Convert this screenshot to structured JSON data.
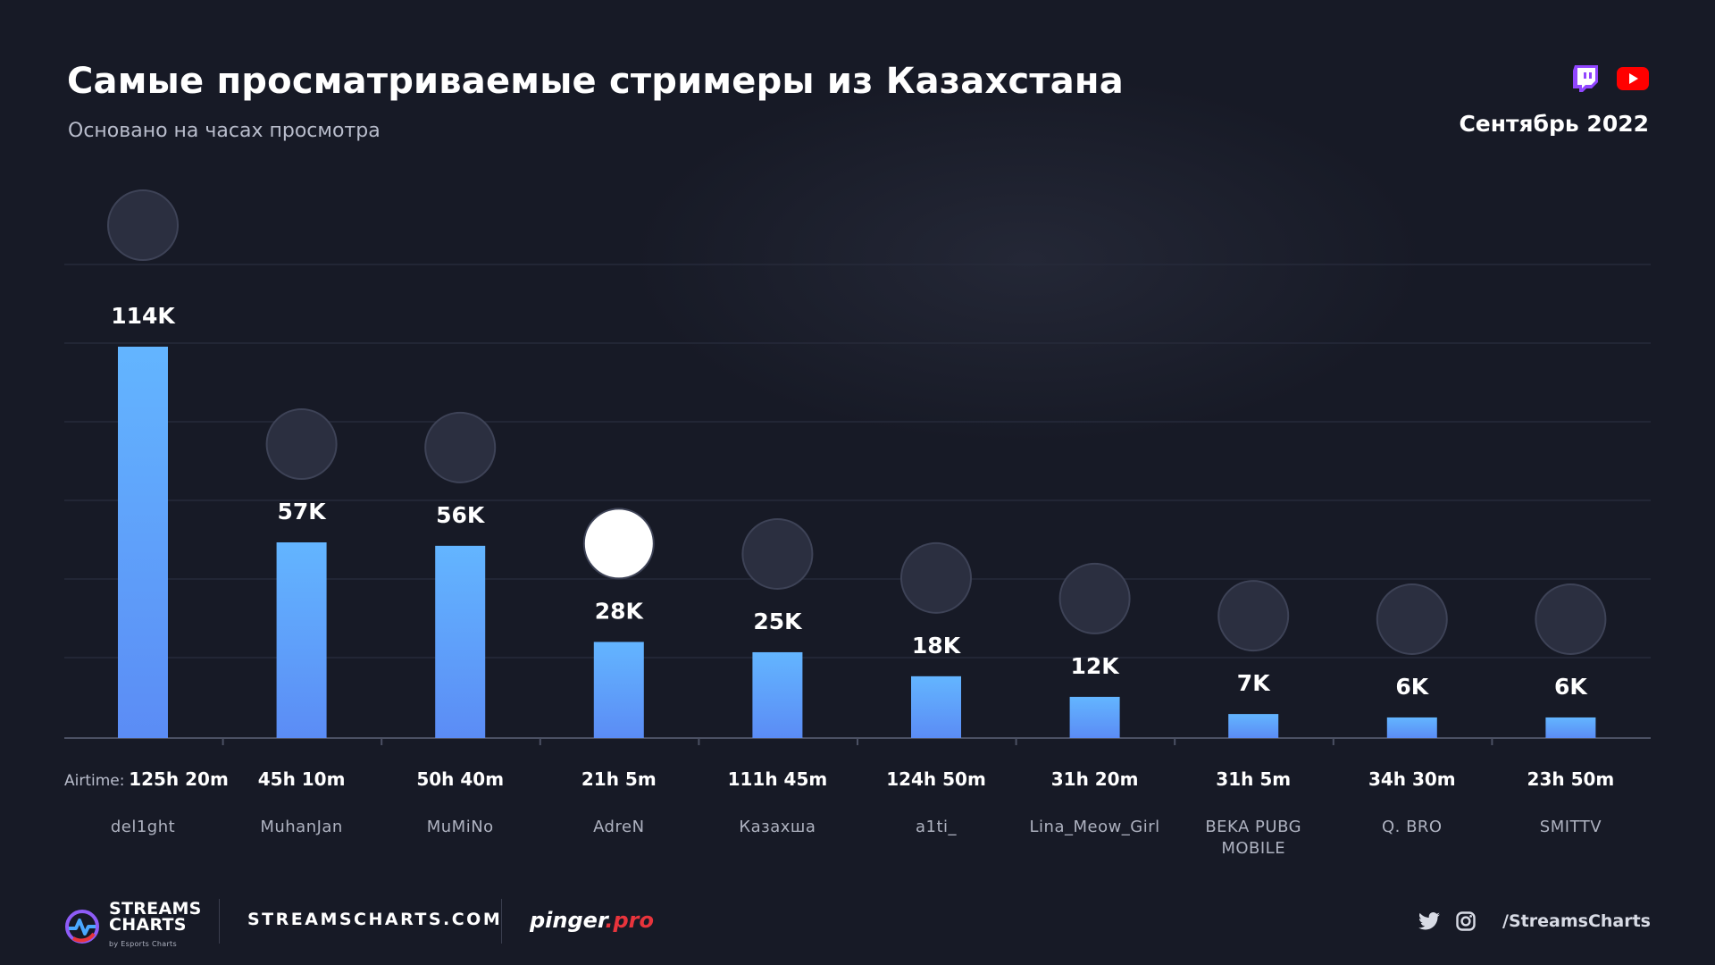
{
  "header": {
    "title": "Самые просматриваемые стримеры из Казахстана",
    "subtitle": "Основано на часах просмотра",
    "date": "Сентябрь 2022",
    "platforms": [
      "twitch-icon",
      "youtube-icon"
    ]
  },
  "colors": {
    "bar_top": "#63b5ff",
    "bar_bottom": "#5b8cf5",
    "background": "#171a26",
    "twitch": "#9146ff",
    "youtube": "#ff0000"
  },
  "airtime_label": "Airtime:",
  "chart_data": {
    "type": "bar",
    "title": "Самые просматриваемые стримеры из Казахстана",
    "subtitle": "Основано на часах просмотра",
    "categories": [
      "del1ght",
      "MuhanJan",
      "MuMiNo",
      "AdreN",
      "Казахша",
      "a1ti_",
      "Lina_Meow_Girl",
      "BEKA PUBG MOBILE",
      "Q. BRO",
      "SMITTV"
    ],
    "values": [
      114000,
      57000,
      56000,
      28000,
      25000,
      18000,
      12000,
      7000,
      6000,
      6000
    ],
    "value_labels": [
      "114K",
      "57K",
      "56K",
      "28K",
      "25K",
      "18K",
      "12K",
      "7K",
      "6K",
      "6K"
    ],
    "airtime": [
      "125h 20m",
      "45h 10m",
      "50h 40m",
      "21h 5m",
      "111h 45m",
      "124h 50m",
      "31h 20m",
      "31h 5m",
      "34h 30m",
      "23h 50m"
    ],
    "ylim": [
      0,
      130000
    ],
    "grid": true,
    "legend": "none"
  },
  "footer": {
    "brand_line1": "STREAMS",
    "brand_line2": "CHARTS",
    "brand_sub": "by Esports Charts",
    "site": "STREAMSCHARTS.COM",
    "partner_main": "pinger",
    "partner_suffix": ".pro",
    "handle": "/StreamsCharts",
    "social_icons": [
      "twitter-icon",
      "instagram-icon"
    ]
  }
}
